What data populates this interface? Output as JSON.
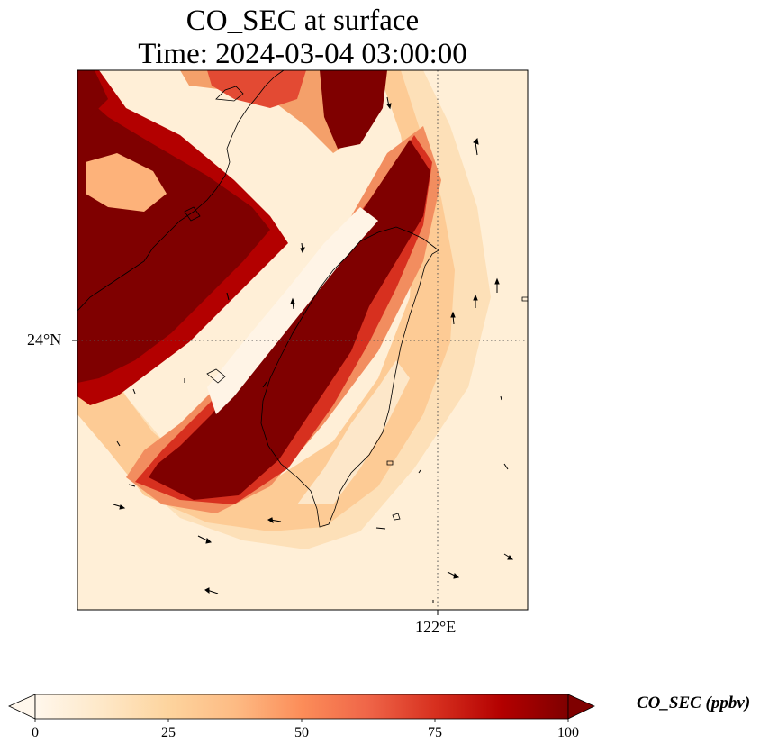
{
  "title_line1": "CO_SEC at surface",
  "title_line2": "Time: 2024-03-04 03:00:00",
  "map": {
    "lat_tick_label": "24°N",
    "lon_tick_label": "122°E",
    "lat_grid_value": 24,
    "lon_grid_value": 122,
    "gridline_style": "dotted",
    "plume_description_colors": {
      "high": "#7f0000",
      "mid": "#e34a33",
      "low": "#fdd49e",
      "background": "#fff1dc"
    }
  },
  "colorbar": {
    "label": "CO_SEC (ppbv)",
    "ticks": [
      "0",
      "25",
      "50",
      "75",
      "100"
    ],
    "vmin": 0,
    "vmax": 100,
    "colormap": "OrRd",
    "extend": "both",
    "colors": [
      "#fff7ec",
      "#fee8c8",
      "#fdd49e",
      "#fdbb84",
      "#fc8d59",
      "#ef6548",
      "#d7301f",
      "#b30000",
      "#7f0000"
    ]
  }
}
